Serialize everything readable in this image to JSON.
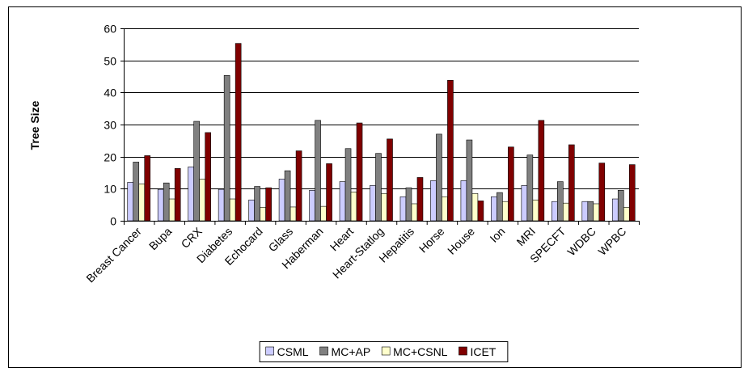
{
  "chart_data": {
    "type": "bar",
    "y_label": "Tree Size",
    "categories": [
      "Breast Cancer",
      "Bupa",
      "CRX",
      "Diabetes",
      "Echocard",
      "Glass",
      "Haberman",
      "Heart",
      "Heart-Statlog",
      "Hepatitis",
      "Horse",
      "House",
      "Ion",
      "MRI",
      "SPECFT",
      "WDBC",
      "WPBC"
    ],
    "series": [
      {
        "name": "CSML",
        "color": "#ccccff",
        "values": [
          12,
          9.8,
          16.8,
          9.8,
          6.5,
          13,
          9.5,
          12.2,
          11,
          7.5,
          12.5,
          12.5,
          7.5,
          11,
          6,
          6,
          6.8
        ]
      },
      {
        "name": "MC+AP",
        "color": "#808080",
        "values": [
          18.3,
          11.8,
          31,
          45.3,
          10.7,
          15.6,
          31.3,
          22.5,
          21,
          10.3,
          27,
          25.2,
          8.8,
          20.5,
          12.2,
          6,
          9.5
        ]
      },
      {
        "name": "MC+CSNL",
        "color": "#ffffcc",
        "values": [
          11.5,
          6.8,
          13,
          6.8,
          4.2,
          4.3,
          4.5,
          9,
          8.5,
          5.3,
          7.5,
          8.5,
          6,
          6.5,
          5.5,
          5.3,
          4.2
        ]
      },
      {
        "name": "ICET",
        "color": "#800000",
        "values": [
          20.3,
          16.3,
          27.5,
          55.3,
          10.3,
          21.8,
          17.8,
          30.5,
          25.5,
          13.5,
          43.8,
          6.2,
          23,
          31.3,
          23.7,
          18,
          17.5
        ]
      }
    ],
    "ylim": [
      0,
      60
    ],
    "yticks": [
      0,
      10,
      20,
      30,
      40,
      50,
      60
    ],
    "grid": true,
    "legend": "bottom"
  }
}
